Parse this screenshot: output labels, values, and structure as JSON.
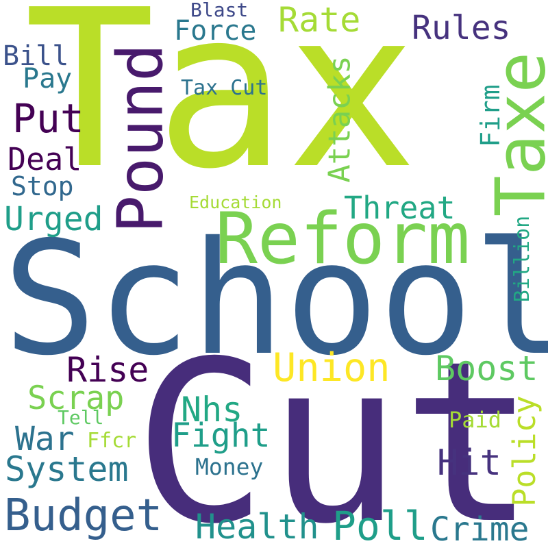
{
  "words": [
    {
      "id": "tax",
      "text": "Tax",
      "color": "#bade28"
    },
    {
      "id": "school",
      "text": "School",
      "color": "#355f8d"
    },
    {
      "id": "cut",
      "text": "Cut",
      "color": "#472d7b"
    },
    {
      "id": "reform",
      "text": "Reform",
      "color": "#7ad151"
    },
    {
      "id": "pound",
      "text": "Pound",
      "color": "#481a6c"
    },
    {
      "id": "taxe",
      "text": "Taxe",
      "color": "#7ad151"
    },
    {
      "id": "rate",
      "text": "Rate",
      "color": "#a5db36"
    },
    {
      "id": "force",
      "text": "Force",
      "color": "#2a788e"
    },
    {
      "id": "rules",
      "text": "Rules",
      "color": "#46327e"
    },
    {
      "id": "blast",
      "text": "Blast",
      "color": "#3e4989"
    },
    {
      "id": "bill",
      "text": "Bill",
      "color": "#3b528b"
    },
    {
      "id": "pay",
      "text": "Pay",
      "color": "#2a788e"
    },
    {
      "id": "put",
      "text": "Put",
      "color": "#440154"
    },
    {
      "id": "tax-cut",
      "text": "Tax Cut",
      "color": "#2c728e"
    },
    {
      "id": "attacks",
      "text": "Attacks",
      "color": "#7ad151"
    },
    {
      "id": "firm",
      "text": "Firm",
      "color": "#1f9e89"
    },
    {
      "id": "deal",
      "text": "Deal",
      "color": "#440154"
    },
    {
      "id": "stop",
      "text": "Stop",
      "color": "#31688e"
    },
    {
      "id": "education",
      "text": "Education",
      "color": "#a5db36"
    },
    {
      "id": "threat",
      "text": "Threat",
      "color": "#22a884"
    },
    {
      "id": "urged",
      "text": "Urged",
      "color": "#1f9e89"
    },
    {
      "id": "billion",
      "text": "Billion",
      "color": "#22a884"
    },
    {
      "id": "rise",
      "text": "Rise",
      "color": "#440154"
    },
    {
      "id": "union",
      "text": "Union",
      "color": "#fde725"
    },
    {
      "id": "boost",
      "text": "Boost",
      "color": "#5ec962"
    },
    {
      "id": "scrap",
      "text": "Scrap",
      "color": "#7ad151"
    },
    {
      "id": "nhs",
      "text": "Nhs",
      "color": "#22a884"
    },
    {
      "id": "policy",
      "text": "Policy",
      "color": "#bade28"
    },
    {
      "id": "tell",
      "text": "Tell",
      "color": "#5ec962"
    },
    {
      "id": "war",
      "text": "War",
      "color": "#2c728e"
    },
    {
      "id": "ffcr",
      "text": "Ffcr",
      "color": "#a5db36"
    },
    {
      "id": "fight",
      "text": "Fight",
      "color": "#1f9e89"
    },
    {
      "id": "paid",
      "text": "Paid",
      "color": "#a5db36"
    },
    {
      "id": "system",
      "text": "System",
      "color": "#2a788e"
    },
    {
      "id": "hit",
      "text": "Hit",
      "color": "#46327e"
    },
    {
      "id": "money",
      "text": "Money",
      "color": "#2c728e"
    },
    {
      "id": "budget",
      "text": "Budget",
      "color": "#355f8d"
    },
    {
      "id": "health",
      "text": "Health",
      "color": "#21918c"
    },
    {
      "id": "poll",
      "text": "Poll",
      "color": "#1f9e89"
    },
    {
      "id": "crime",
      "text": "Crime",
      "color": "#2a788e"
    }
  ]
}
